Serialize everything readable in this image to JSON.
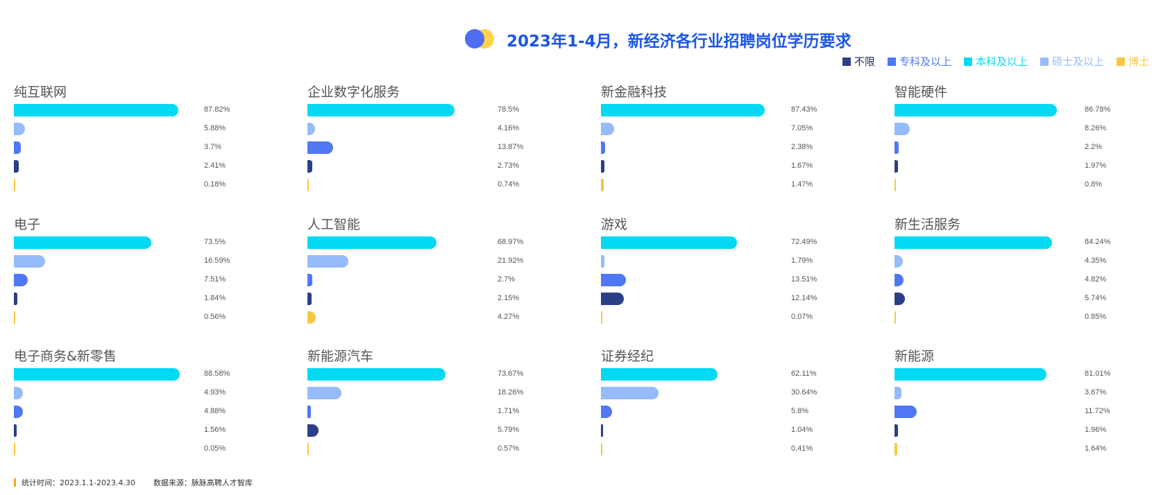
{
  "header": {
    "title": "2023年1-4月，新经济各行业招聘岗位学历要求"
  },
  "legend": [
    {
      "label": "不限",
      "color": "#2b3f86"
    },
    {
      "label": "专科及以上",
      "color": "#5078f5"
    },
    {
      "label": "本科及以上",
      "color": "#04d9f3"
    },
    {
      "label": "硕士及以上",
      "color": "#96bbfb"
    },
    {
      "label": "博士",
      "color": "#f7c744"
    }
  ],
  "chart_data": {
    "type": "bar",
    "orientation": "horizontal",
    "series_order": [
      "本科及以上",
      "硕士及以上",
      "专科及以上",
      "不限",
      "博士"
    ],
    "series_colors": [
      "#04d9f3",
      "#96bbfb",
      "#5078f5",
      "#2b3f86",
      "#f7c744"
    ],
    "panels": [
      {
        "title": "纯互联网",
        "values": [
          87.82,
          5.88,
          3.7,
          2.41,
          0.18
        ],
        "labels": [
          "87.82%",
          "5.88%",
          "3.7%",
          "2.41%",
          "0.18%"
        ]
      },
      {
        "title": "企业数字化服务",
        "values": [
          78.5,
          4.16,
          13.87,
          2.73,
          0.74
        ],
        "labels": [
          "78.5%",
          "4.16%",
          "13.87%",
          "2.73%",
          "0.74%"
        ]
      },
      {
        "title": "新金融科技",
        "values": [
          87.43,
          7.05,
          2.38,
          1.67,
          1.47
        ],
        "labels": [
          "87.43%",
          "7.05%",
          "2.38%",
          "1.67%",
          "1.47%"
        ]
      },
      {
        "title": "智能硬件",
        "values": [
          86.78,
          8.26,
          2.2,
          1.97,
          0.8
        ],
        "labels": [
          "86.78%",
          "8.26%",
          "2.2%",
          "1.97%",
          "0.8%"
        ]
      },
      {
        "title": "电子",
        "values": [
          73.5,
          16.59,
          7.51,
          1.84,
          0.56
        ],
        "labels": [
          "73.5%",
          "16.59%",
          "7.51%",
          "1.84%",
          "0.56%"
        ]
      },
      {
        "title": "人工智能",
        "values": [
          68.97,
          21.92,
          2.7,
          2.15,
          4.27
        ],
        "labels": [
          "68.97%",
          "21.92%",
          "2.7%",
          "2.15%",
          "4.27%"
        ]
      },
      {
        "title": "游戏",
        "values": [
          72.49,
          1.79,
          13.51,
          12.14,
          0.07
        ],
        "labels": [
          "72.49%",
          "1.79%",
          "13.51%",
          "12.14%",
          "0.07%"
        ]
      },
      {
        "title": "新生活服务",
        "values": [
          84.24,
          4.35,
          4.82,
          5.74,
          0.85
        ],
        "labels": [
          "84.24%",
          "4.35%",
          "4.82%",
          "5.74%",
          "0.85%"
        ]
      },
      {
        "title": "电子商务&新零售",
        "values": [
          88.58,
          4.93,
          4.88,
          1.56,
          0.05
        ],
        "labels": [
          "88.58%",
          "4.93%",
          "4.88%",
          "1.56%",
          "0.05%"
        ]
      },
      {
        "title": "新能源汽车",
        "values": [
          73.67,
          18.26,
          1.71,
          5.79,
          0.57
        ],
        "labels": [
          "73.67%",
          "18.26%",
          "1.71%",
          "5.79%",
          "0.57%"
        ]
      },
      {
        "title": "证券经纪",
        "values": [
          62.11,
          30.64,
          5.8,
          1.04,
          0.41
        ],
        "labels": [
          "62.11%",
          "30.64%",
          "5.8%",
          "1.04%",
          "0.41%"
        ]
      },
      {
        "title": "新能源",
        "values": [
          81.01,
          3.67,
          11.72,
          1.96,
          1.64
        ],
        "labels": [
          "81.01%",
          "3.67%",
          "11.72%",
          "1.96%",
          "1.64%"
        ]
      }
    ]
  },
  "footer": {
    "period": "统计时间：2023.1.1-2023.4.30",
    "source": "数据来源：脉脉高聘人才智库"
  }
}
